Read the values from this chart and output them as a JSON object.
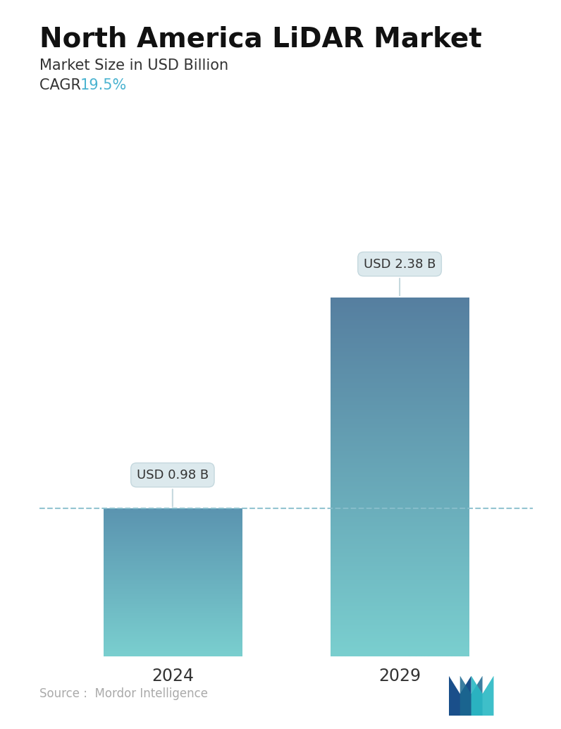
{
  "title": "North America LiDAR Market",
  "subtitle": "Market Size in USD Billion",
  "cagr_label": "CAGR ",
  "cagr_value": "19.5%",
  "cagr_color": "#4ab3d0",
  "categories": [
    "2024",
    "2029"
  ],
  "values": [
    0.98,
    2.38
  ],
  "bar_labels": [
    "USD 0.98 B",
    "USD 2.38 B"
  ],
  "bar_top_colors": [
    "#5b94b0",
    "#567fa0"
  ],
  "bar_bottom_colors": [
    "#7acfcf",
    "#7acfcf"
  ],
  "dashed_line_color": "#88bfcc",
  "source_text": "Source :  Mordor Intelligence",
  "source_color": "#aaaaaa",
  "background_color": "#ffffff",
  "title_fontsize": 28,
  "subtitle_fontsize": 15,
  "cagr_fontsize": 15,
  "bar_label_fontsize": 13,
  "tick_fontsize": 17,
  "source_fontsize": 12,
  "ylim_max": 3.0,
  "x_positions": [
    0.27,
    0.73
  ],
  "bar_width": 0.28
}
